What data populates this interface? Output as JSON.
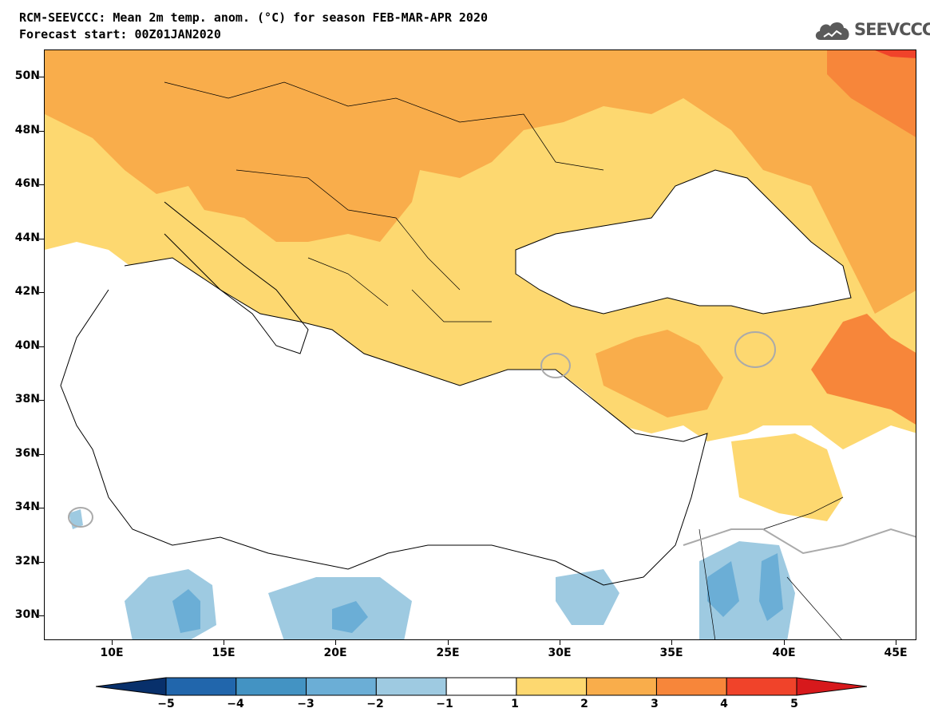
{
  "header": {
    "title": "RCM-SEEVCCC: Mean 2m temp. anom. (°C) for season FEB-MAR-APR 2020",
    "subtitle": "Forecast start: 00Z01JAN2020"
  },
  "logo": {
    "text": "SEEVCCC",
    "icon": "cloud-icon"
  },
  "map": {
    "variable": "Mean 2m temperature anomaly",
    "units": "°C",
    "season": "FEB-MAR-APR 2020",
    "lat_labels": [
      "50N",
      "48N",
      "46N",
      "44N",
      "42N",
      "40N",
      "38N",
      "36N",
      "34N",
      "32N",
      "30N"
    ],
    "lon_labels": [
      "10E",
      "15E",
      "20E",
      "25E",
      "30E",
      "35E",
      "40E",
      "45E"
    ],
    "extent": {
      "lon_min": 7,
      "lon_max": 46,
      "lat_min": 29,
      "lat_max": 51
    }
  },
  "colorbar": {
    "labels": [
      "−5",
      "−4",
      "−3",
      "−2",
      "−1",
      "1",
      "2",
      "3",
      "4",
      "5"
    ],
    "colors": [
      "#08306b",
      "#2166ac",
      "#4393c3",
      "#6baed6",
      "#9ecae1",
      "#ffffff",
      "#fdd870",
      "#f9ad4b",
      "#f7863a",
      "#f0432a",
      "#d7191c"
    ]
  }
}
